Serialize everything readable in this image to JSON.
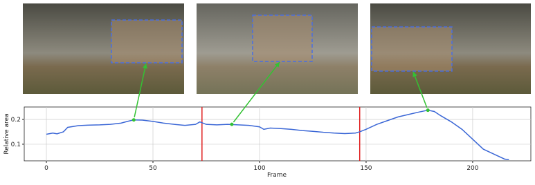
{
  "chart_data": {
    "type": "line",
    "xlabel": "Frame",
    "ylabel": "Relative area",
    "x": [
      0,
      3,
      5,
      8,
      10,
      15,
      20,
      25,
      30,
      35,
      38,
      41,
      45,
      50,
      55,
      60,
      65,
      70,
      72,
      75,
      80,
      85,
      90,
      95,
      100,
      102,
      105,
      110,
      115,
      120,
      125,
      130,
      135,
      140,
      145,
      147,
      150,
      155,
      160,
      165,
      170,
      175,
      179,
      182,
      185,
      190,
      195,
      200,
      205,
      210,
      215,
      217
    ],
    "values": [
      0.14,
      0.145,
      0.142,
      0.15,
      0.168,
      0.175,
      0.177,
      0.178,
      0.18,
      0.185,
      0.192,
      0.198,
      0.197,
      0.192,
      0.185,
      0.18,
      0.176,
      0.18,
      0.19,
      0.18,
      0.178,
      0.18,
      0.178,
      0.176,
      0.17,
      0.16,
      0.165,
      0.163,
      0.16,
      0.155,
      0.152,
      0.148,
      0.145,
      0.143,
      0.145,
      0.15,
      0.16,
      0.18,
      0.195,
      0.21,
      0.22,
      0.23,
      0.237,
      0.232,
      0.215,
      0.19,
      0.16,
      0.12,
      0.08,
      0.06,
      0.04,
      0.038
    ],
    "color": "#3b67d6",
    "xlim": [
      -10.4,
      227.3
    ],
    "ylim": [
      0.033,
      0.25
    ],
    "xticks": [
      0,
      50,
      100,
      150,
      200
    ],
    "yticks": [
      0.1,
      0.2
    ],
    "grid": true,
    "vlines": [
      73,
      147
    ],
    "vline_color": "#e02020",
    "highlight_points": [
      {
        "x": 41,
        "y": 0.198
      },
      {
        "x": 87,
        "y": 0.18
      },
      {
        "x": 179,
        "y": 0.237
      }
    ],
    "highlight_color": "#33c233"
  }
}
